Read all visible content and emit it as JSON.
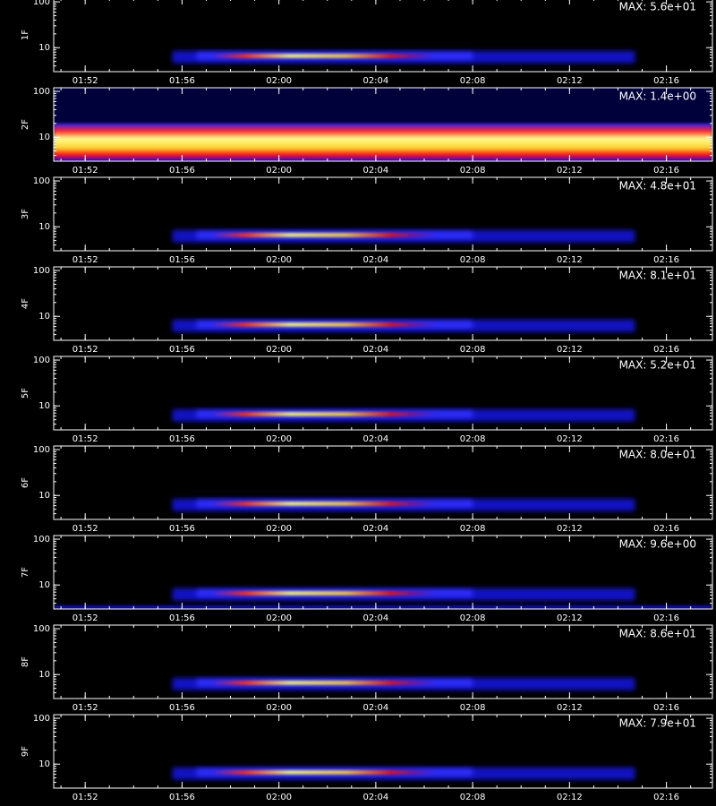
{
  "axes": {
    "xlim": [
      50.7,
      77.9
    ],
    "xticks": [
      {
        "value": 52,
        "label": "01:52"
      },
      {
        "value": 56,
        "label": "01:56"
      },
      {
        "value": 60,
        "label": "02:00"
      },
      {
        "value": 64,
        "label": "02:04"
      },
      {
        "value": 68,
        "label": "02:08"
      },
      {
        "value": 72,
        "label": "02:12"
      },
      {
        "value": 76,
        "label": "02:16"
      }
    ],
    "ylim": [
      3,
      120
    ],
    "yticks": [
      10,
      100
    ],
    "log_y": true
  },
  "chart_data": [
    {
      "type": "spectrogram",
      "ylabel": "1F",
      "annotation": "MAX: 5.6e+01"
    },
    {
      "type": "spectrogram",
      "ylabel": "2F",
      "annotation": "MAX: 1.4e+00"
    },
    {
      "type": "spectrogram",
      "ylabel": "3F",
      "annotation": "MAX: 4.8e+01"
    },
    {
      "type": "spectrogram",
      "ylabel": "4F",
      "annotation": "MAX: 8.1e+01"
    },
    {
      "type": "spectrogram",
      "ylabel": "5F",
      "annotation": "MAX: 5.2e+01"
    },
    {
      "type": "spectrogram",
      "ylabel": "6F",
      "annotation": "MAX: 8.0e+01"
    },
    {
      "type": "spectrogram",
      "ylabel": "7F",
      "annotation": "MAX: 9.6e+00"
    },
    {
      "type": "spectrogram",
      "ylabel": "8F",
      "annotation": "MAX: 8.6e+01"
    },
    {
      "type": "spectrogram",
      "ylabel": "9F",
      "annotation": "MAX: 7.9e+01"
    }
  ]
}
